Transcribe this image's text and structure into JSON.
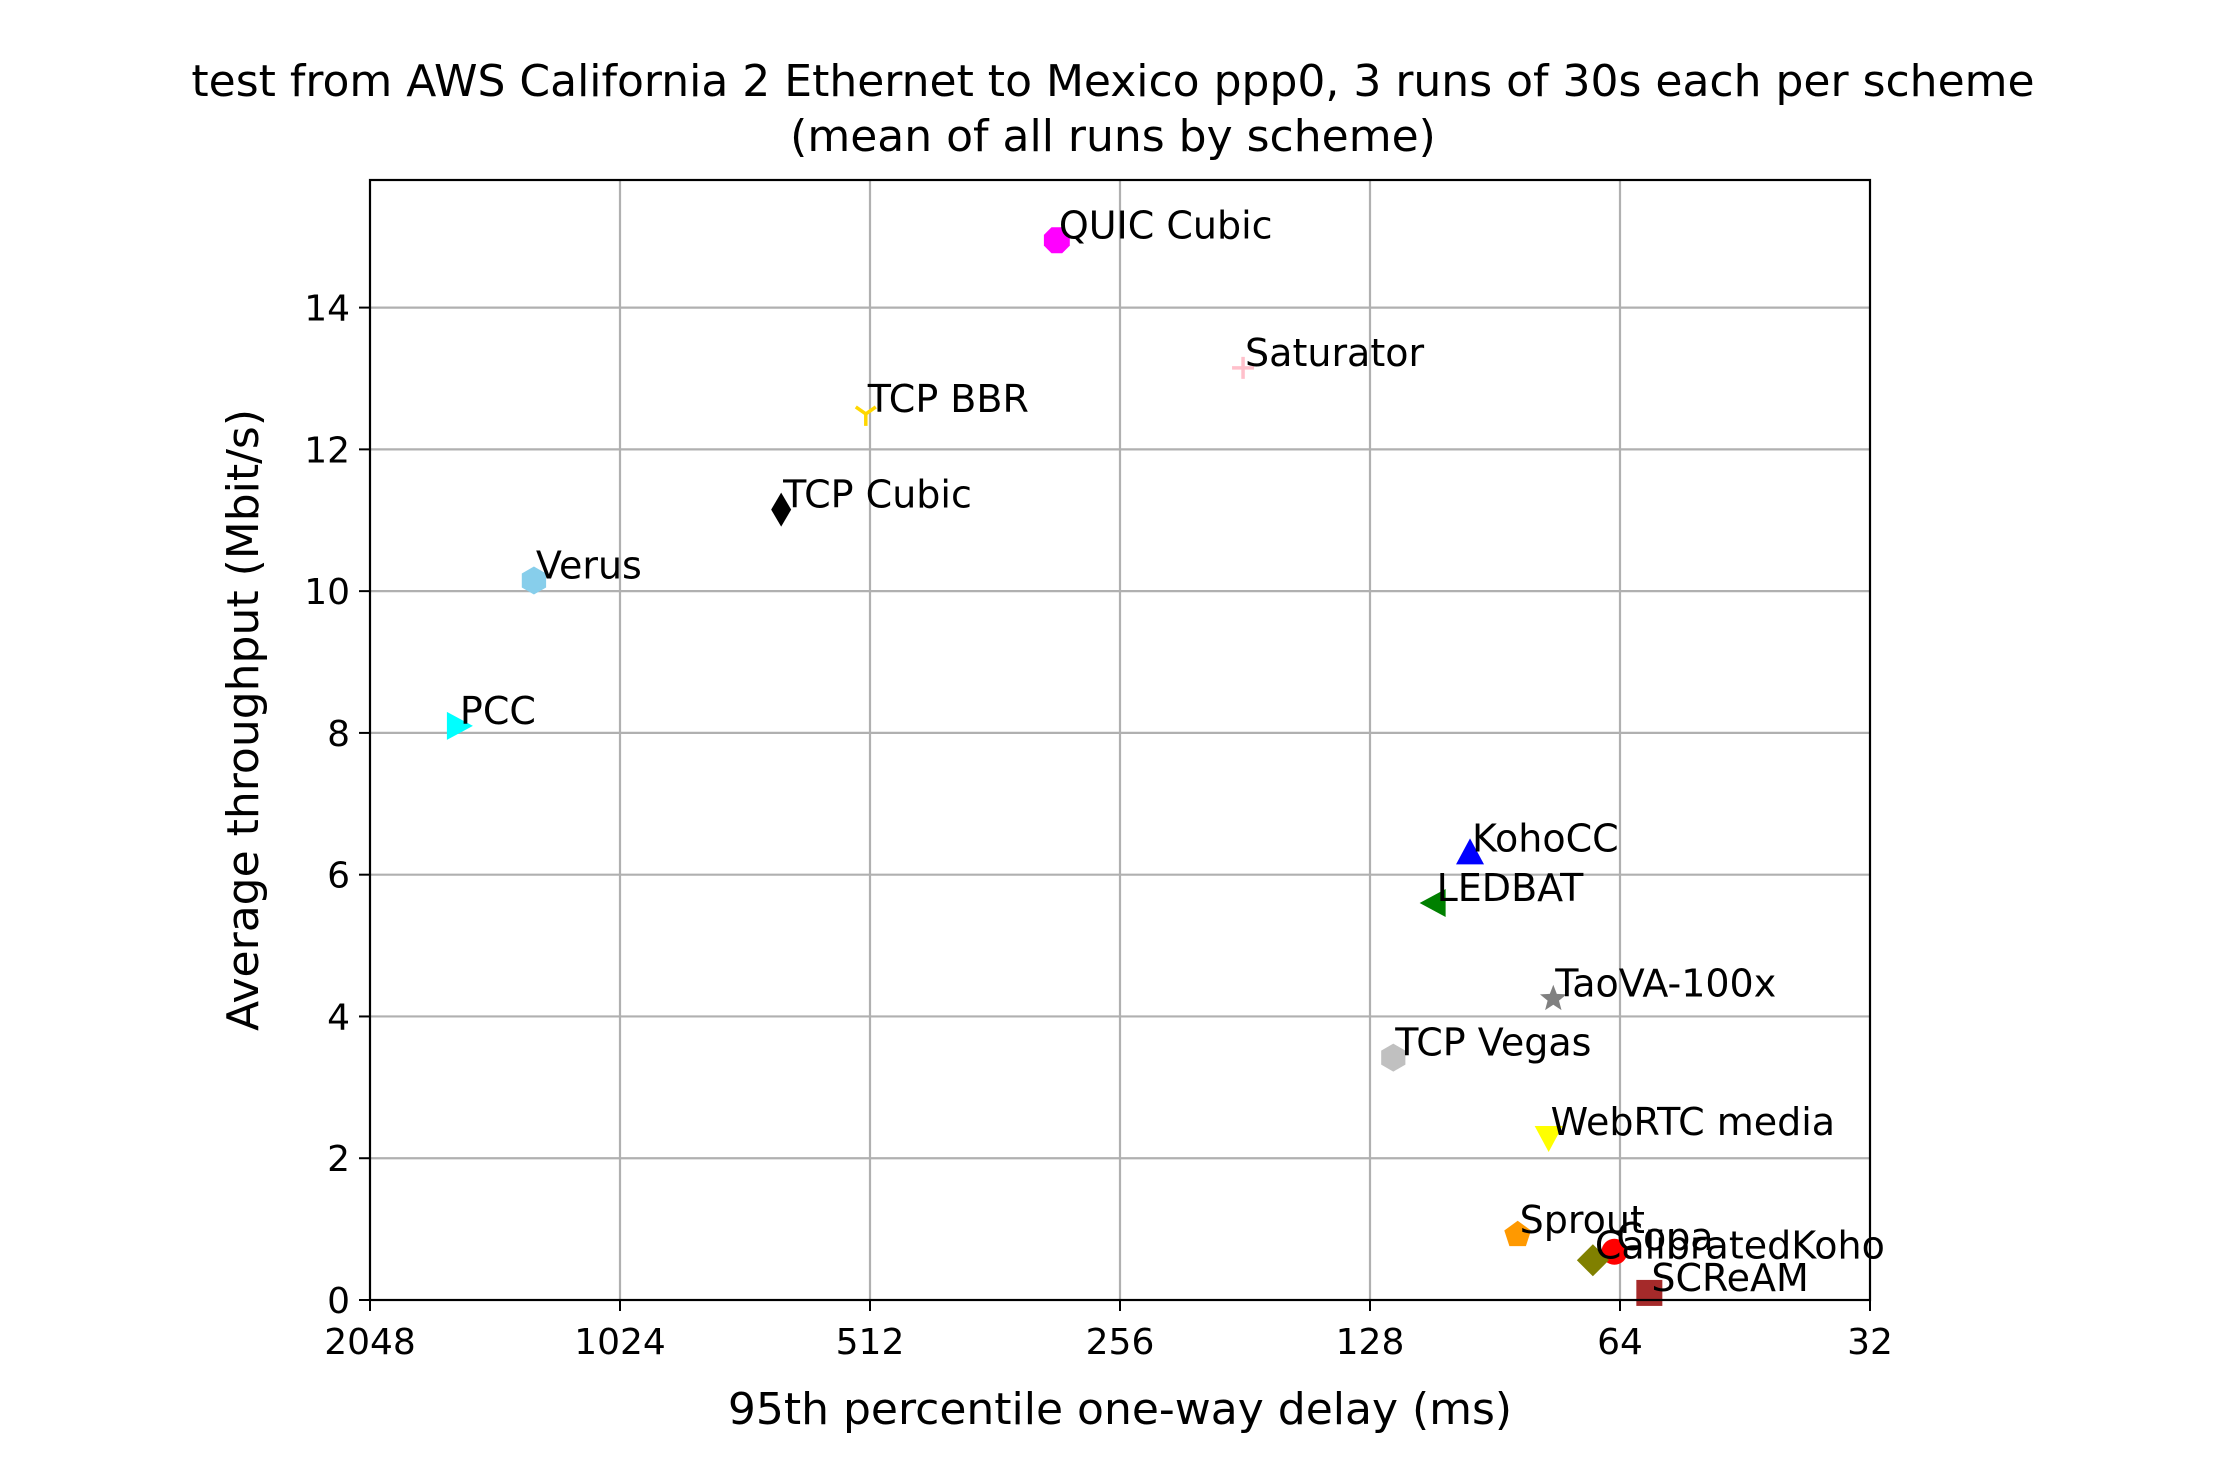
{
  "chart_data": {
    "type": "scatter",
    "title": "test from AWS California 2 Ethernet to Mexico ppp0, 3 runs of 30s each per scheme",
    "subtitle": "(mean of all runs by scheme)",
    "xlabel": "95th percentile one-way delay (ms)",
    "ylabel": "Average throughput (Mbit/s)",
    "x_scale": "log2",
    "x_reversed": true,
    "xlim": [
      2048,
      32
    ],
    "ylim": [
      0,
      15.8
    ],
    "x_ticks": [
      2048,
      1024,
      512,
      256,
      128,
      64,
      32
    ],
    "x_tick_labels": [
      "2048",
      "1024",
      "512",
      "256",
      "128",
      "64",
      "32"
    ],
    "y_ticks": [
      0,
      2,
      4,
      6,
      8,
      10,
      12,
      14
    ],
    "y_tick_labels": [
      "0",
      "2",
      "4",
      "6",
      "8",
      "10",
      "12",
      "14"
    ],
    "grid": true,
    "legend": "none",
    "points": [
      {
        "name": "QUIC Cubic",
        "x": 305,
        "y": 14.95,
        "marker": "octagon",
        "color": "#ff00ff"
      },
      {
        "name": "Saturator",
        "x": 182,
        "y": 13.15,
        "marker": "plus",
        "color": "#ffc0cb"
      },
      {
        "name": "TCP BBR",
        "x": 518,
        "y": 12.5,
        "marker": "tri_down",
        "color": "#ffd700"
      },
      {
        "name": "TCP Cubic",
        "x": 655,
        "y": 11.15,
        "marker": "thin_diamond",
        "color": "#000000"
      },
      {
        "name": "Verus",
        "x": 1300,
        "y": 10.15,
        "marker": "hexagon",
        "color": "#87ceeb"
      },
      {
        "name": "PCC",
        "x": 1605,
        "y": 8.1,
        "marker": "triangle_right",
        "color": "#00ffff"
      },
      {
        "name": "KohoCC",
        "x": 97,
        "y": 6.3,
        "marker": "triangle_up",
        "color": "#0000ff"
      },
      {
        "name": "LEDBAT",
        "x": 107,
        "y": 5.6,
        "marker": "triangle_left",
        "color": "#008000"
      },
      {
        "name": "TaoVA-100x",
        "x": 77,
        "y": 4.25,
        "marker": "star",
        "color": "#808080"
      },
      {
        "name": "TCP Vegas",
        "x": 120,
        "y": 3.42,
        "marker": "hexagon",
        "color": "#c0c0c0"
      },
      {
        "name": "WebRTC media",
        "x": 78,
        "y": 2.3,
        "marker": "triangle_down",
        "color": "#ffff00"
      },
      {
        "name": "Sprout",
        "x": 85,
        "y": 0.92,
        "marker": "pentagon",
        "color": "#ff9900"
      },
      {
        "name": "Copa",
        "x": 65,
        "y": 0.68,
        "marker": "circle",
        "color": "#ff0000"
      },
      {
        "name": "CalibratedKoho",
        "x": 69,
        "y": 0.56,
        "marker": "diamond",
        "color": "#808000"
      },
      {
        "name": "SCReAM",
        "x": 59,
        "y": 0.1,
        "marker": "square",
        "color": "#a52a2a"
      }
    ]
  }
}
